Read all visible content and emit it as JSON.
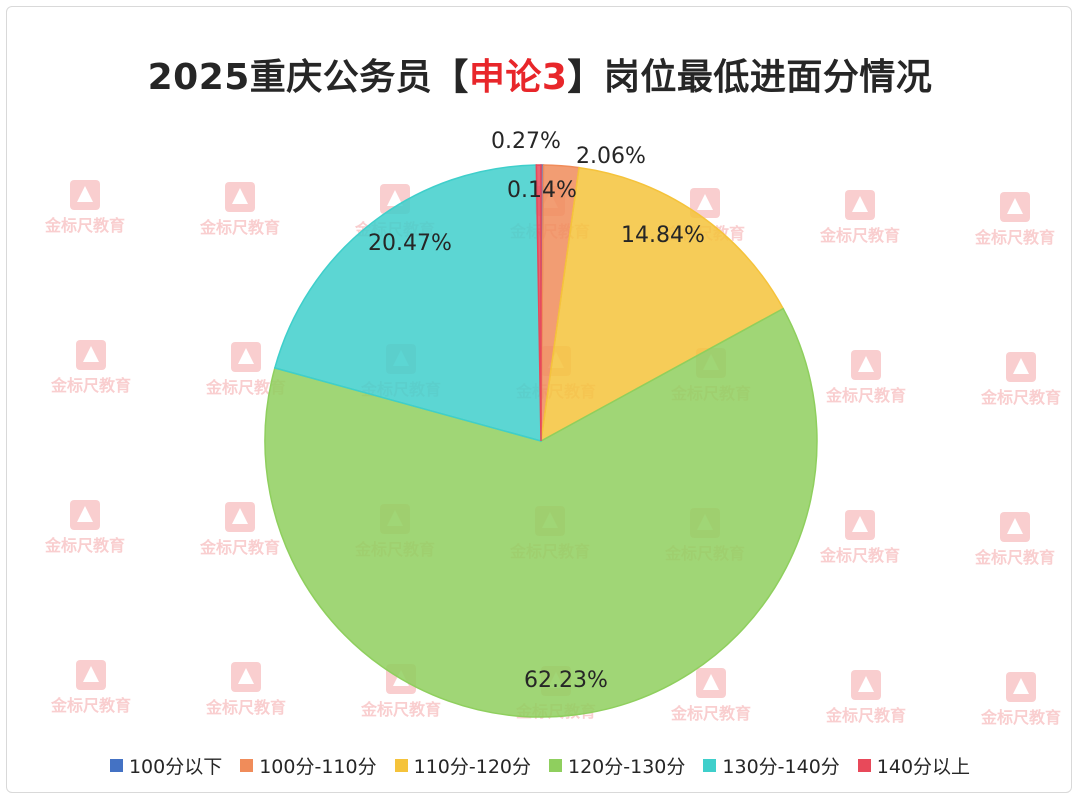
{
  "chart_data": {
    "type": "pie",
    "title_parts": [
      "2025重庆公务员【",
      "申论3",
      "】岗位最低进面分情况"
    ],
    "categories": [
      "100分以下",
      "100分-110分",
      "110分-120分",
      "120分-130分",
      "130分-140分",
      "140分以上"
    ],
    "values": [
      0.14,
      2.06,
      14.84,
      62.23,
      20.47,
      0.27
    ],
    "value_labels": [
      "0.14%",
      "2.06%",
      "14.84%",
      "62.23%",
      "20.47%",
      "0.27%"
    ],
    "colors": [
      "#4472c4",
      "#f08c5a",
      "#f5c33b",
      "#8fcf5e",
      "#3fcfcb",
      "#e8495a"
    ],
    "legend_position": "bottom",
    "start_angle": "12 o'clock",
    "direction": "clockwise"
  },
  "watermark": {
    "text": "金标尺教育",
    "color": "#e8262a"
  }
}
